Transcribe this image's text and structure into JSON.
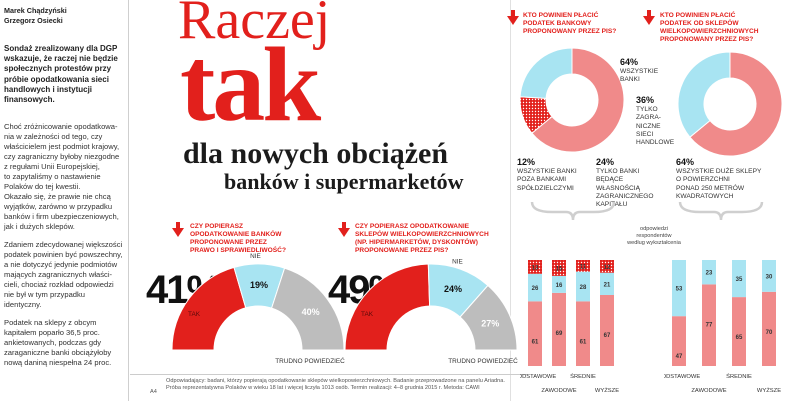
{
  "article": {
    "authors": [
      "Marek Chądzyński",
      "Grzegorz Osiecki"
    ],
    "lead": [
      "Sondaż zrealizowany dla DGP",
      "wskazuje, że raczej nie będzie",
      "społecznych protestów przy",
      "próbie opodatkowania sieci",
      "handlowych i instytucji",
      "finansowych."
    ],
    "para1": [
      "Choć zróżnicowanie opodatkowa-",
      "nia w zależności od tego, czy",
      "właścicielem jest podmiot krajowy,",
      "czy zagraniczny byłoby niezgodne",
      "z regułami Unii Europejskiej,",
      "to zapytaliśmy o nastawienie",
      "Polaków do tej kwestii.",
      "Okazało się, że prawie nie chcą",
      "wyjątków, zarówno w przypadku",
      "banków i firm ubezpieczeniowych,",
      "jak i dużych sklepów."
    ],
    "para2": [
      "Zdaniem zdecydowanej większości",
      "podatek powinien być powszechny,",
      "a nie dotyczyć jedynie podmiotów",
      "mających zagranicznych właści-",
      "cieli, chociaż rozkład odpowiedzi",
      "nie był w tym przypadku",
      "identyczny."
    ],
    "para3": [
      "Podatek na sklepy z obcym",
      "kapitałem poparło 36,5 proc.",
      "ankietowanych, podczas gdy",
      "zaraganiczne banki obciążyłoby",
      "nową daniną niespełna 24 proc."
    ]
  },
  "headline": {
    "raczej": "Raczej",
    "tak": "tak",
    "line1": "dla nowych obciążeń",
    "line2": "banków i supermarketów"
  },
  "footnote": [
    "Odpowiadający: badani, którzy popierają opodatkowanie sklepów wielkopowierzchniowych. Badanie przeprowadzone na panelu Ariadna.",
    "Próba reprezentatywna Polaków w wieku 18 lat i więcej liczyła 1013 osób. Termin realizacji: 4–8 grudnia 2015 r. Metoda: CAWI"
  ],
  "page_number": "A4",
  "colors": {
    "red": "#e2201c",
    "pink": "#f08a8a",
    "light_blue": "#a8e4f2",
    "gray": "#bdbdbd",
    "dark_red": "#b5121b"
  },
  "chart_data": [
    {
      "type": "pie",
      "variant": "half-donut",
      "question": [
        "CZY POPIERASZ",
        "OPODATKOWANIE BANKÓW",
        "PROPONOWANE PRZEZ",
        "PRAWO I SPRAWIEDLIWOŚĆ?"
      ],
      "headline_value": "41%",
      "slices": [
        {
          "label": "TAK",
          "value": 41,
          "color": "#e2201c"
        },
        {
          "label": "NIE",
          "value": 19,
          "value_label": "19%",
          "color": "#a8e4f2"
        },
        {
          "label": "TRUDNO POWIEDZIEĆ",
          "value": 40,
          "value_label": "40%",
          "color": "#bdbdbd"
        }
      ]
    },
    {
      "type": "pie",
      "variant": "half-donut",
      "question": [
        "CZY POPIERASZ OPODATKOWANIE",
        "SKLEPÓW WIELKOPOWIERZCHNIOWYCH",
        "(NP. HIPERMARKETÓW, DYSKONTÓW)",
        "PROPONOWANE PRZEZ PIS?"
      ],
      "headline_value": "49%",
      "slices": [
        {
          "label": "TAK",
          "value": 49,
          "color": "#e2201c"
        },
        {
          "label": "NIE",
          "value": 24,
          "value_label": "24%",
          "color": "#a8e4f2"
        },
        {
          "label": "TRUDNO POWIEDZIEĆ",
          "value": 27,
          "value_label": "27%",
          "color": "#bdbdbd"
        }
      ]
    },
    {
      "type": "pie",
      "variant": "donut",
      "question": [
        "KTO POWINIEN PŁACIĆ",
        "PODATEK BANKOWY",
        "PROPONOWANY PRZEZ PIS?"
      ],
      "slices": [
        {
          "value": 64,
          "value_label": "64%",
          "label_lines": [
            "WSZYSTKIE",
            "BANKI"
          ],
          "color": "#f08a8a"
        },
        {
          "value": 12,
          "value_label": "12%",
          "label_lines": [
            "WSZYSTKIE BANKI",
            "POZA BANKAMI",
            "SPÓŁDZIELCZYMI"
          ],
          "color": "#e2201c",
          "pattern": "dots"
        },
        {
          "value": 24,
          "value_label": "24%",
          "label_lines": [
            "TYLKO BANKI",
            "BĘDĄCE",
            "WŁASNOŚCIĄ",
            "ZAGRANICZNEGO",
            "KAPITAŁU"
          ],
          "color": "#a8e4f2"
        }
      ]
    },
    {
      "type": "pie",
      "variant": "donut",
      "question": [
        "KTO POWINIEN PŁACIĆ",
        "PODATEK OD SKLEPÓW",
        "WIELKOPOWIERZCHNIOWYCH",
        "PROPONOWANY PRZEZ PIS?"
      ],
      "slices": [
        {
          "value": 64,
          "value_label": "64%",
          "label_lines": [
            "WSZYSTKIE DUŻE SKLEPY",
            "O POWIERZCHNI",
            "PONAD 250 METRÓW",
            "KWADRATOWYCH"
          ],
          "color": "#f08a8a"
        },
        {
          "value": 36,
          "value_label": "36%",
          "label_lines": [
            "TYLKO",
            "ZAGRA-",
            "NICZNE",
            "SIECI",
            "HANDLOWE"
          ],
          "color": "#a8e4f2"
        }
      ]
    },
    {
      "type": "bar",
      "stacked": true,
      "annotation": [
        "odpowiedzi",
        "respondentów",
        "według wykształcenia"
      ],
      "categories": [
        "PODSTAWOWE",
        "ZAWODOWE",
        "ŚREDNIE",
        "WYŻSZE"
      ],
      "series": [
        {
          "values": [
            61,
            69,
            61,
            67
          ],
          "color": "#f08a8a"
        },
        {
          "values": [
            26,
            16,
            28,
            21
          ],
          "color": "#a8e4f2"
        },
        {
          "values": [
            13,
            15,
            11,
            12
          ],
          "color": "#e2201c",
          "pattern": "dots"
        }
      ],
      "ylim": [
        0,
        100
      ]
    },
    {
      "type": "bar",
      "stacked": true,
      "categories": [
        "PODSTAWOWE",
        "ZAWODOWE",
        "ŚREDNIE",
        "WYŻSZE"
      ],
      "series": [
        {
          "values": [
            47,
            77,
            65,
            70
          ],
          "color": "#f08a8a"
        },
        {
          "values": [
            53,
            23,
            35,
            30
          ],
          "color": "#a8e4f2"
        }
      ],
      "ylim": [
        0,
        100
      ]
    }
  ]
}
